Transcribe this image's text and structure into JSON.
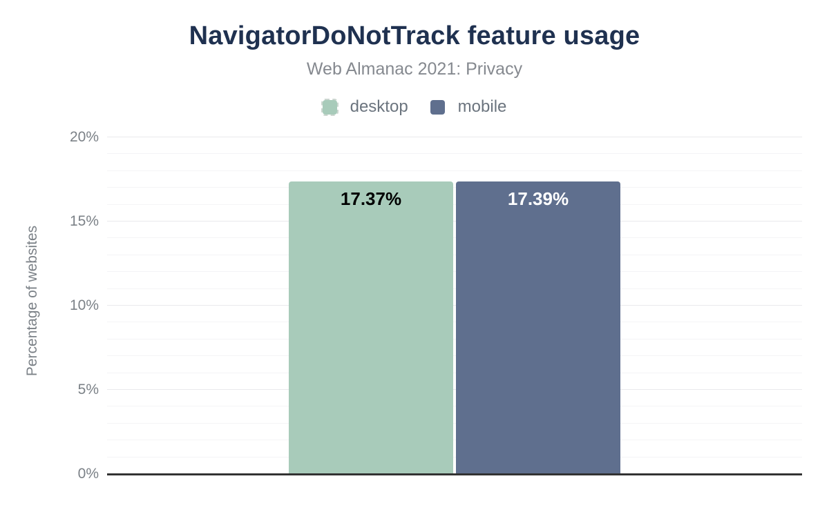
{
  "chart": {
    "title": "NavigatorDoNotTrack feature usage",
    "subtitle": "Web Almanac 2021: Privacy"
  },
  "chart_data": {
    "type": "bar",
    "categories": [
      "desktop",
      "mobile"
    ],
    "series": [
      {
        "name": "desktop",
        "value": 17.37,
        "value_label": "17.37%",
        "color": "#a8cbba",
        "label_color": "#000000"
      },
      {
        "name": "mobile",
        "value": 17.39,
        "value_label": "17.39%",
        "color": "#5f6f8e",
        "label_color": "#ffffff"
      }
    ],
    "title": "NavigatorDoNotTrack feature usage",
    "subtitle": "Web Almanac 2021: Privacy",
    "xlabel": "",
    "ylabel": "Percentage of websites",
    "ylim": [
      0,
      20
    ],
    "yticks": [
      0,
      5,
      10,
      15,
      20
    ],
    "ytick_labels": [
      "0%",
      "5%",
      "10%",
      "15%",
      "20%"
    ],
    "minor_tick_step": 1,
    "grid": true,
    "legend_position": "top"
  },
  "colors": {
    "title_text": "#1f3150",
    "subtitle_text": "#85898f",
    "axis_text": "#7b8187",
    "legend_text": "#6b747e",
    "baseline": "#323232",
    "grid_minor": "#f4f4f6",
    "grid_major": "#e9e9ec"
  }
}
